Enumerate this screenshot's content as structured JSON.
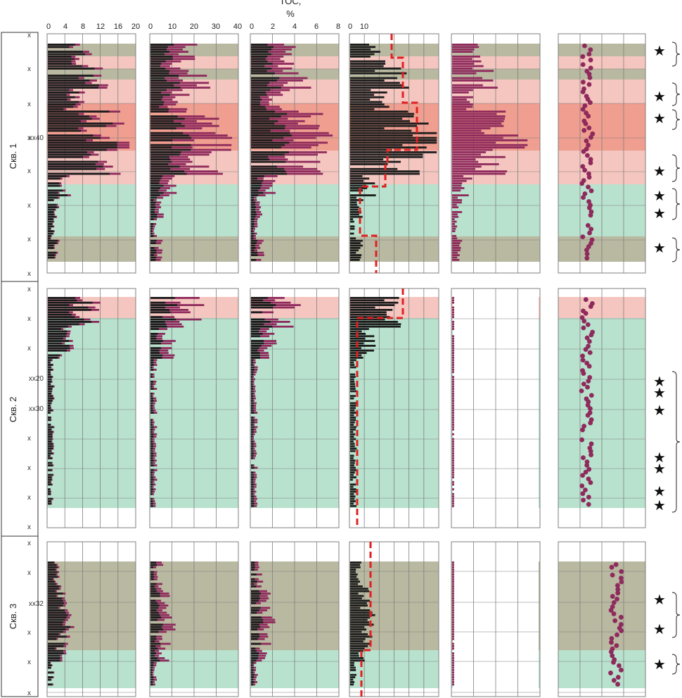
{
  "header": {
    "title": "TOC,",
    "unit": "%"
  },
  "colors": {
    "beige": "#b9b8a0",
    "pink_light": "#f5c6bf",
    "salmon": "#ef9e8f",
    "green": "#b8e2ce",
    "black_bar": "#1c1c1c",
    "purple": "#8e2a5c",
    "red_dash": "#e02020",
    "grid": "#7f7f7f"
  },
  "top_axes": [
    {
      "ticks": [
        "0",
        "4",
        "8",
        "12",
        "16",
        "20"
      ]
    },
    {
      "ticks": [
        "0",
        "10",
        "20",
        "30",
        "40"
      ]
    },
    {
      "ticks": [
        "0",
        "2",
        "4",
        "6",
        "8"
      ]
    },
    {
      "ticks": [
        "0",
        "10"
      ]
    }
  ],
  "wells": [
    {
      "label": "Скв. 1",
      "depth_labels": [
        "x",
        "x",
        "x",
        "x",
        "xx40",
        "x",
        "x",
        "x",
        "x"
      ]
    },
    {
      "label": "Скв. 2",
      "depth_labels": [
        "x",
        "x",
        "x",
        "xx20",
        "xx30",
        "x",
        "x",
        "x",
        "x"
      ]
    },
    {
      "label": "Скв. 3",
      "depth_labels": [
        "x",
        "x",
        "xx32",
        "x",
        "x",
        "x"
      ]
    }
  ],
  "chart_data": [
    {
      "type": "bar",
      "well": "Скв. 1",
      "column": "TOC, %",
      "xlim": [
        0,
        20
      ],
      "zones": [
        "beige",
        "pink_light",
        "beige",
        "pink_light",
        "salmon",
        "pink_light",
        "green",
        "beige"
      ],
      "profile_level": [
        7,
        9,
        6,
        12,
        15,
        11,
        4,
        2,
        1,
        2
      ],
      "markers": 7
    },
    {
      "type": "bar",
      "well": "Скв. 2",
      "column": "TOC, %",
      "xlim": [
        0,
        20
      ],
      "zones": [
        "pink_light",
        "green"
      ],
      "profile_level": [
        8,
        4,
        1,
        1,
        1,
        1,
        1
      ],
      "markers": 7
    },
    {
      "type": "bar",
      "well": "Скв. 3",
      "column": "TOC, %",
      "xlim": [
        0,
        20
      ],
      "zones": [
        "beige",
        "green"
      ],
      "profile_level": [
        2,
        3,
        4,
        3,
        1
      ],
      "markers": 3
    }
  ]
}
